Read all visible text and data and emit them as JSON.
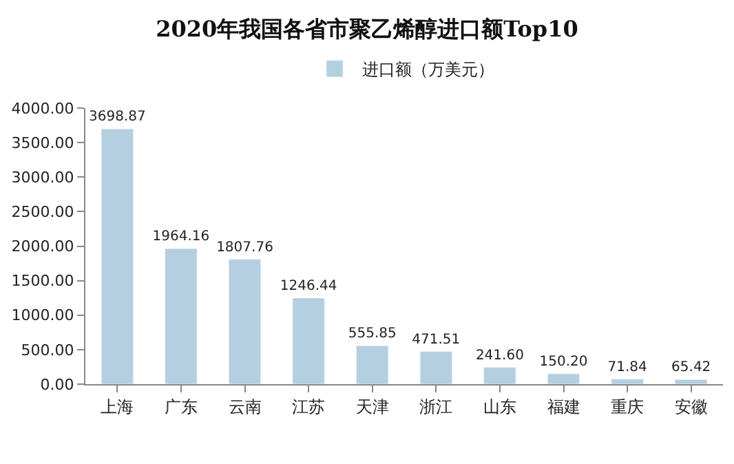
{
  "chart_data": {
    "type": "bar",
    "title": "2020年我国各省市聚乙烯醇进口额Top10",
    "categories": [
      "上海",
      "广东",
      "云南",
      "江苏",
      "天津",
      "浙江",
      "山东",
      "福建",
      "重庆",
      "安徽"
    ],
    "series": [
      {
        "name": "进口额（万美元）",
        "color": "#b4cfe0",
        "values": [
          3698.87,
          1964.16,
          1807.76,
          1246.44,
          555.85,
          471.51,
          241.6,
          150.2,
          71.84,
          65.42
        ],
        "value_labels": [
          "3698.87",
          "1964.16",
          "1807.76",
          "1246.44",
          "555.85",
          "471.51",
          "241.60",
          "150.20",
          "71.84",
          "65.42"
        ]
      }
    ],
    "ylim": [
      0,
      4000
    ],
    "yticks": [
      {
        "value": 0,
        "label": "0.00"
      },
      {
        "value": 500,
        "label": "500.00"
      },
      {
        "value": 1000,
        "label": "1000.00"
      },
      {
        "value": 1500,
        "label": "1500.00"
      },
      {
        "value": 2000,
        "label": "2000.00"
      },
      {
        "value": 2500,
        "label": "2500.00"
      },
      {
        "value": 3000,
        "label": "3000.00"
      },
      {
        "value": 3500,
        "label": "3500.00"
      },
      {
        "value": 4000,
        "label": "4000.00"
      }
    ],
    "legend": "top"
  }
}
